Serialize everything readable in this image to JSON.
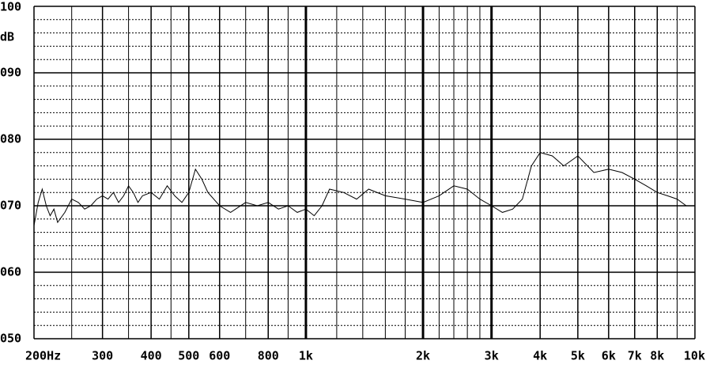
{
  "chart_data": {
    "type": "line",
    "ylabel": "dB",
    "xscale": "log",
    "color": "#000000",
    "xlim": [
      200,
      10000
    ],
    "ylim": [
      50,
      100
    ],
    "yticks": [
      {
        "value": 100,
        "label": "100"
      },
      {
        "value": 90,
        "label": "090"
      },
      {
        "value": 80,
        "label": "080"
      },
      {
        "value": 70,
        "label": "070"
      },
      {
        "value": 60,
        "label": "060"
      },
      {
        "value": 50,
        "label": "050"
      }
    ],
    "yminor_ticks": [
      52,
      54,
      56,
      58,
      62,
      64,
      66,
      68,
      72,
      74,
      76,
      78,
      82,
      84,
      86,
      88,
      92,
      94,
      96,
      98
    ],
    "xticks": [
      {
        "value": 200,
        "label": "200Hz"
      },
      300,
      400,
      500,
      600,
      800,
      {
        "value": 1000,
        "label": "1k"
      },
      {
        "value": 2000,
        "label": "2k"
      },
      {
        "value": 3000,
        "label": "3k"
      },
      {
        "value": 4000,
        "label": "4k"
      },
      {
        "value": 5000,
        "label": "5k"
      },
      {
        "value": 6000,
        "label": "6k"
      },
      {
        "value": 7000,
        "label": "7k"
      },
      {
        "value": 8000,
        "label": "8k"
      },
      {
        "value": 10000,
        "label": "10k"
      }
    ],
    "xminor_ticks": [
      250,
      350,
      450,
      700,
      900,
      1200,
      1400,
      1600,
      1800,
      2200,
      2400,
      2600,
      2800,
      9000
    ],
    "xbold_ticks": [
      1000,
      2000,
      3000
    ],
    "x": [
      200,
      205,
      210,
      215,
      220,
      225,
      230,
      240,
      250,
      260,
      270,
      280,
      290,
      300,
      310,
      320,
      330,
      340,
      350,
      360,
      370,
      380,
      400,
      420,
      440,
      460,
      480,
      500,
      520,
      540,
      560,
      600,
      640,
      700,
      750,
      800,
      850,
      900,
      950,
      1000,
      1050,
      1100,
      1150,
      1250,
      1350,
      1450,
      1600,
      1800,
      2000,
      2200,
      2400,
      2600,
      2800,
      3000,
      3200,
      3400,
      3600,
      3800,
      4000,
      4300,
      4600,
      5000,
      5500,
      6000,
      6500,
      7000,
      7500,
      8000,
      8500,
      9000,
      9500
    ],
    "values": [
      67,
      70.5,
      72.5,
      70,
      68.5,
      69.5,
      67.5,
      69,
      71,
      70.5,
      69.5,
      70,
      71,
      71.5,
      71,
      72,
      70.5,
      71.5,
      73,
      72,
      70.5,
      71.5,
      72,
      71,
      73,
      71.5,
      70.5,
      72,
      75.5,
      74,
      72,
      70,
      69,
      70.5,
      70,
      70.5,
      69.5,
      70,
      69,
      69.5,
      68.5,
      70,
      72.5,
      72,
      71,
      72.5,
      71.5,
      71,
      70.5,
      71.5,
      73,
      72.5,
      71,
      70,
      69,
      69.5,
      71,
      76,
      78,
      77.5,
      76,
      77.5,
      75,
      75.5,
      75,
      74,
      73,
      72,
      71.5,
      71,
      70
    ]
  }
}
